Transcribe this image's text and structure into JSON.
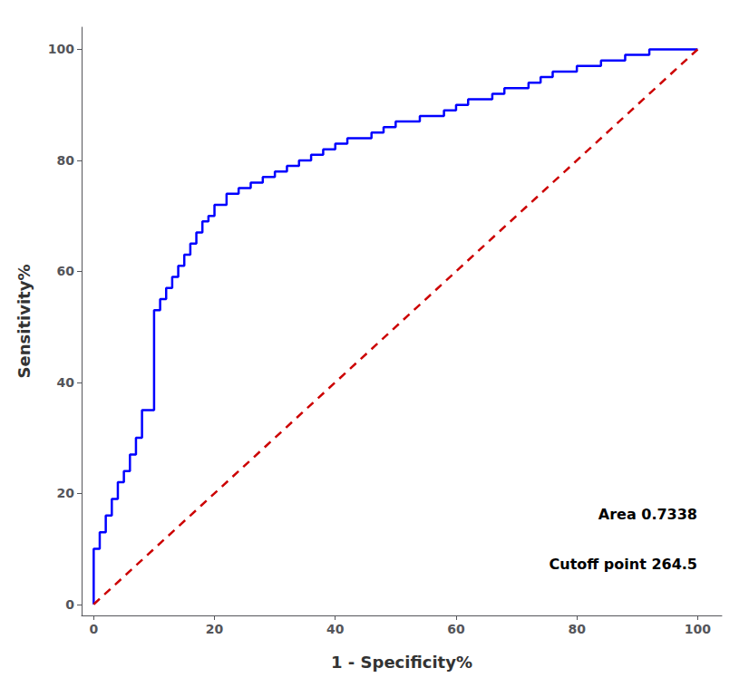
{
  "chart_data": {
    "type": "line",
    "xlabel": "1 - Specificity%",
    "ylabel": "Sensitivity%",
    "xlim": [
      -2,
      104
    ],
    "ylim": [
      -2,
      104
    ],
    "xticks": [
      0,
      20,
      40,
      60,
      80,
      100
    ],
    "yticks": [
      0,
      20,
      40,
      60,
      80,
      100
    ],
    "grid": false,
    "annotations": [
      "Area 0.7338",
      "Cutoff point 264.5"
    ],
    "series": [
      {
        "color": "#0000FF",
        "line_style": "solid",
        "x": [
          0,
          0,
          1,
          1,
          2,
          2,
          3,
          3,
          3,
          4,
          4,
          4,
          5,
          5,
          6,
          6,
          7,
          7,
          7,
          8,
          8,
          8,
          9,
          9,
          10,
          10,
          11,
          11,
          12,
          12,
          13,
          13,
          14,
          14,
          15,
          15,
          16,
          16,
          17,
          17,
          18,
          18,
          19,
          19,
          20,
          20,
          22,
          22,
          24,
          24,
          26,
          26,
          28,
          28,
          30,
          30,
          32,
          32,
          34,
          34,
          36,
          36,
          38,
          38,
          40,
          40,
          42,
          42,
          44,
          44,
          46,
          46,
          48,
          48,
          50,
          50,
          52,
          52,
          54,
          54,
          56,
          56,
          58,
          58,
          60,
          60,
          62,
          62,
          64,
          64,
          66,
          66,
          68,
          68,
          70,
          70,
          72,
          72,
          74,
          74,
          76,
          76,
          78,
          78,
          80,
          80,
          82,
          82,
          84,
          84,
          86,
          86,
          88,
          88,
          90,
          90,
          92,
          92,
          94,
          94,
          96,
          96,
          98,
          98,
          100
        ],
        "values": [
          0,
          10,
          10,
          13,
          13,
          16,
          16,
          19,
          19,
          19,
          19,
          22,
          22,
          24,
          24,
          27,
          27,
          30,
          30,
          30,
          30,
          35,
          35,
          35,
          35,
          53,
          53,
          55,
          55,
          57,
          57,
          59,
          59,
          61,
          61,
          63,
          63,
          65,
          65,
          67,
          67,
          69,
          69,
          70,
          70,
          72,
          72,
          74,
          74,
          75,
          75,
          76,
          76,
          77,
          77,
          78,
          78,
          79,
          79,
          80,
          80,
          81,
          81,
          82,
          82,
          83,
          83,
          84,
          84,
          84,
          84,
          85,
          85,
          86,
          86,
          87,
          87,
          87,
          87,
          88,
          88,
          88,
          88,
          89,
          89,
          90,
          90,
          91,
          91,
          91,
          91,
          92,
          92,
          93,
          93,
          93,
          93,
          94,
          94,
          95,
          95,
          96,
          96,
          96,
          96,
          97,
          97,
          97,
          97,
          98,
          98,
          98,
          98,
          99,
          99,
          99,
          99,
          100,
          100,
          100,
          100,
          100,
          100,
          100,
          100
        ]
      },
      {
        "color": "#CC0000",
        "line_style": "dashed",
        "x": [
          0,
          100
        ],
        "values": [
          0,
          100
        ]
      }
    ]
  }
}
